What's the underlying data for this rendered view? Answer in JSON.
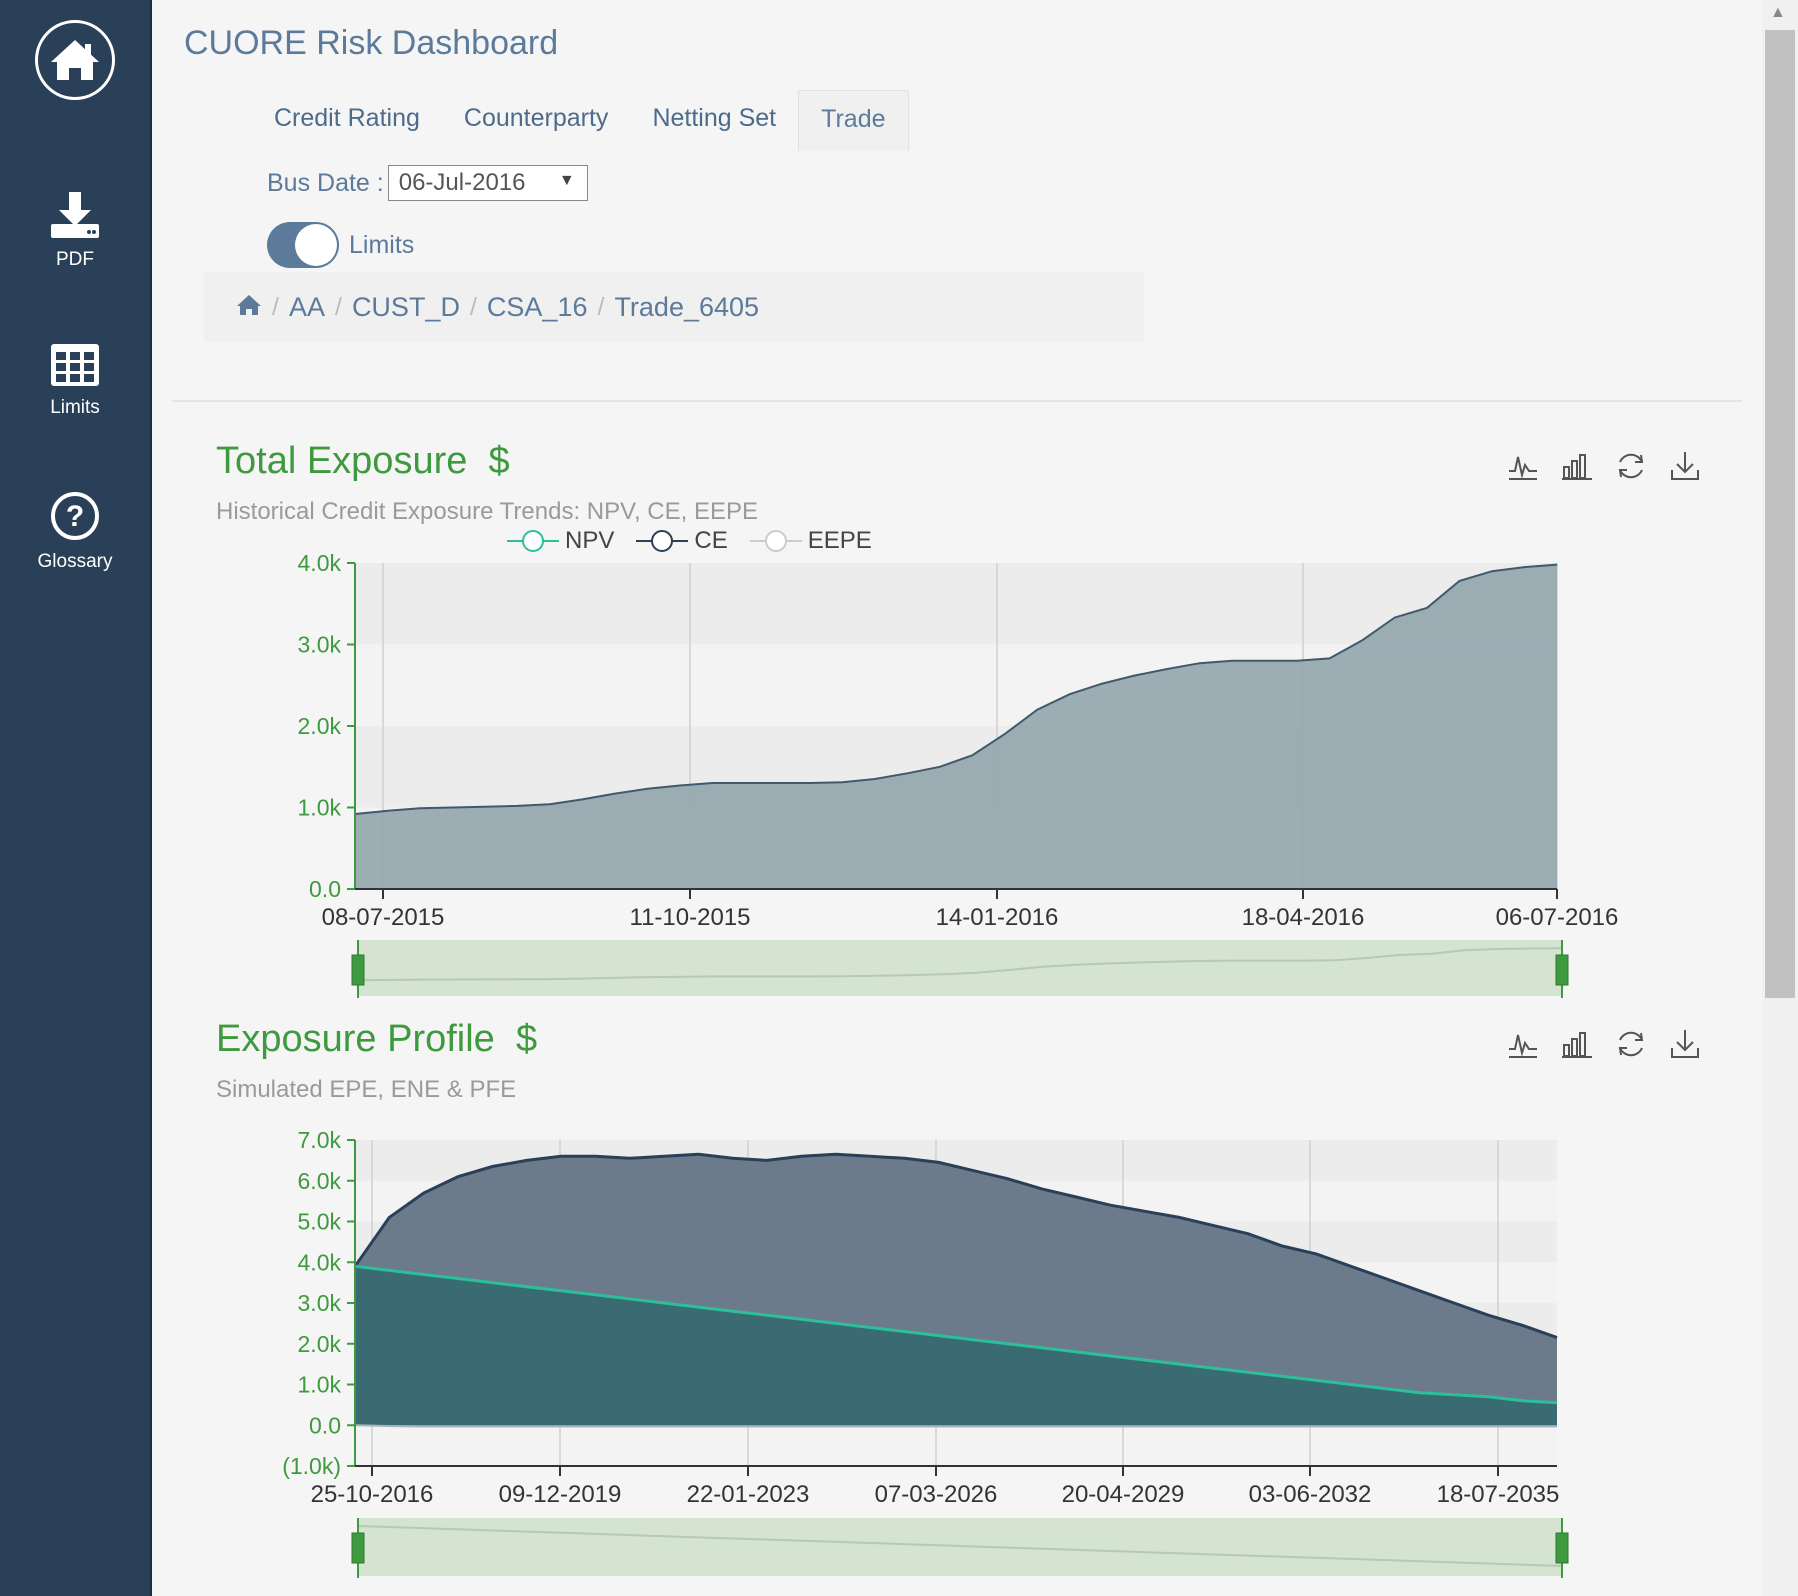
{
  "sidebar": {
    "home_icon": "home-icon",
    "items": [
      {
        "label": "PDF",
        "icon": "download-icon"
      },
      {
        "label": "Limits",
        "icon": "table-icon"
      },
      {
        "label": "Glossary",
        "icon": "help-icon"
      }
    ]
  },
  "header": {
    "title": "CUORE Risk Dashboard",
    "tabs": [
      "Credit Rating",
      "Counterparty",
      "Netting Set",
      "Trade"
    ],
    "active_tab": "Trade",
    "bus_date_label": "Bus Date :",
    "bus_date_value": "06-Jul-2016",
    "limits_toggle_label": "Limits",
    "limits_toggle_on": true
  },
  "breadcrumb": [
    "AA",
    "CUST_D",
    "CSA_16",
    "Trade_6405"
  ],
  "colors": {
    "sidebar": "#2a3f58",
    "accent_green": "#3f9a3f",
    "npv": "#2bbf9a",
    "ce_fill": "#97a9b0",
    "epe_fill": "#6b7b8c",
    "pfe_fill": "#3b6b72",
    "navigator": "#d5e4d0"
  },
  "panels": {
    "total_exposure": {
      "title": "Total Exposure",
      "currency": "$",
      "subtitle": "Historical Credit Exposure Trends: NPV, CE, EEPE"
    },
    "exposure_profile": {
      "title": "Exposure Profile",
      "currency": "$",
      "subtitle": "Simulated EPE, ENE & PFE"
    }
  },
  "toolbar_icons": [
    "line-chart-icon",
    "bar-chart-icon",
    "refresh-icon",
    "download-icon"
  ],
  "chart_data": [
    {
      "type": "area",
      "legend_position": "top",
      "series": [
        {
          "name": "NPV",
          "color": "#2bbf9a"
        },
        {
          "name": "CE",
          "color": "#2a3f58"
        },
        {
          "name": "EEPE",
          "color": "#cccccc"
        }
      ],
      "x_ticks": [
        "08-07-2015",
        "11-10-2015",
        "14-01-2016",
        "18-04-2016",
        "06-07-2016"
      ],
      "y_ticks": [
        "0.0",
        "1.0k",
        "2.0k",
        "3.0k",
        "4.0k"
      ],
      "ylim": [
        0,
        4000
      ],
      "grid": true,
      "ce_values": [
        920,
        960,
        990,
        1000,
        1010,
        1020,
        1040,
        1100,
        1170,
        1230,
        1270,
        1300,
        1300,
        1300,
        1300,
        1310,
        1350,
        1420,
        1500,
        1640,
        1900,
        2200,
        2390,
        2520,
        2620,
        2700,
        2770,
        2800,
        2800,
        2800,
        2830,
        3050,
        3330,
        3450,
        3780,
        3900,
        3950,
        3980
      ]
    },
    {
      "type": "area",
      "x_ticks": [
        "25-10-2016",
        "09-12-2019",
        "22-01-2023",
        "07-03-2026",
        "20-04-2029",
        "03-06-2032",
        "18-07-2035"
      ],
      "y_ticks": [
        "(1.0k)",
        "0.0",
        "1.0k",
        "2.0k",
        "3.0k",
        "4.0k",
        "5.0k",
        "6.0k",
        "7.0k"
      ],
      "ylim": [
        -1000,
        7000
      ],
      "grid": true,
      "epe_values": [
        3900,
        5100,
        5700,
        6100,
        6350,
        6500,
        6600,
        6600,
        6550,
        6600,
        6650,
        6550,
        6500,
        6600,
        6650,
        6600,
        6550,
        6450,
        6250,
        6050,
        5800,
        5600,
        5400,
        5250,
        5100,
        4900,
        4700,
        4400,
        4200,
        3900,
        3600,
        3300,
        3000,
        2700,
        2450,
        2150
      ],
      "pfe_values": [
        3900,
        3800,
        3700,
        3600,
        3500,
        3400,
        3300,
        3200,
        3100,
        3000,
        2900,
        2800,
        2700,
        2600,
        2500,
        2400,
        2300,
        2200,
        2100,
        2000,
        1900,
        1800,
        1700,
        1600,
        1500,
        1400,
        1300,
        1200,
        1100,
        1000,
        900,
        800,
        750,
        700,
        600,
        550
      ],
      "ene_values": [
        0,
        -20,
        -30,
        -30,
        -30,
        -30,
        -30,
        -30,
        -30,
        -30,
        -30,
        -30,
        -30,
        -30,
        -30,
        -30,
        -30,
        -30,
        -30,
        -30,
        -30,
        -30,
        -30,
        -30,
        -30,
        -30,
        -30,
        -30,
        -30,
        -30,
        -30,
        -30,
        -30,
        -30,
        -30,
        -30
      ]
    }
  ]
}
